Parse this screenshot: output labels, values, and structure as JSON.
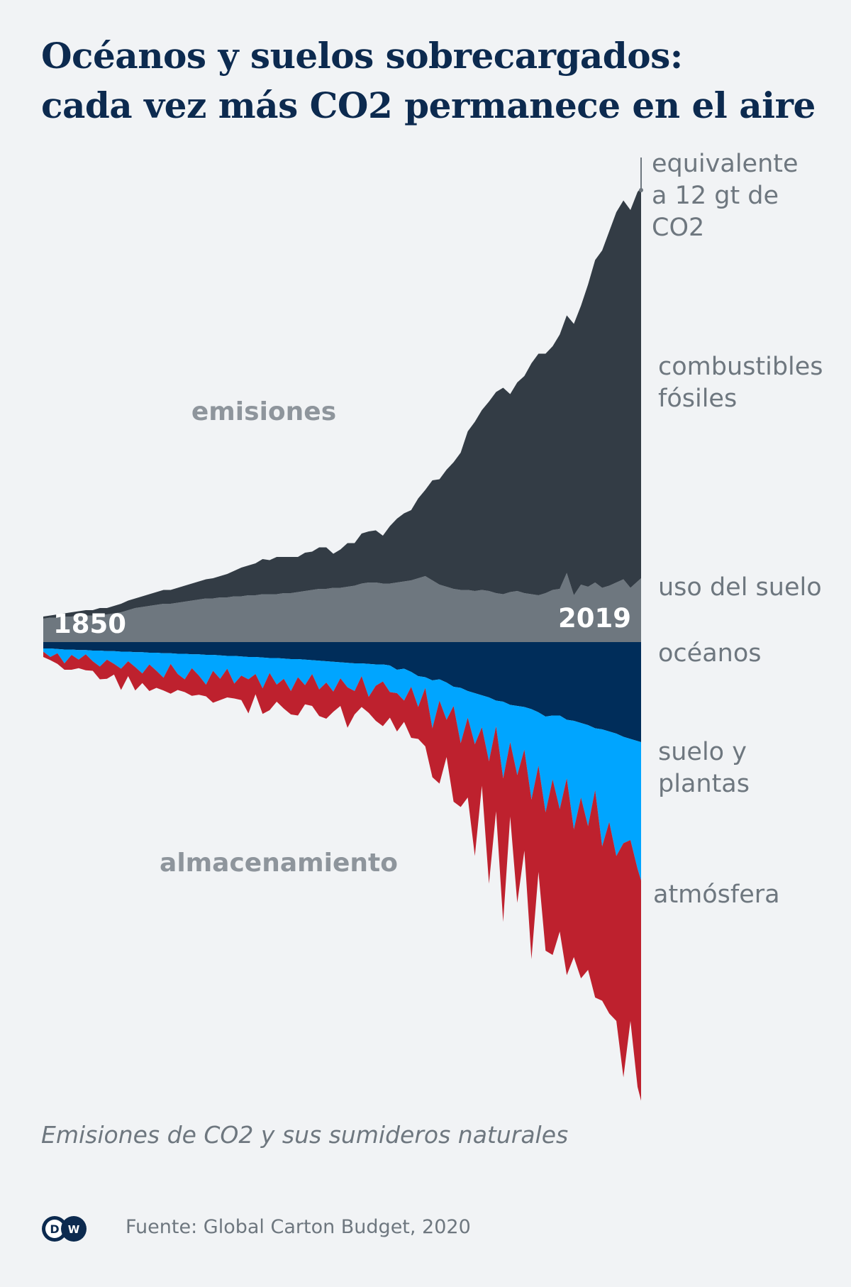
{
  "title_lines": [
    "Océanos y suelos sobrecargados:",
    "cada vez más CO2 permanece en el aire"
  ],
  "caption": "Emisiones de CO2 y sus sumideros naturales",
  "source": "Fuente: Global Carton Budget, 2020",
  "logo_text": "DW",
  "chart_data": {
    "type": "area",
    "title": "Océanos y suelos sobrecargados: cada vez más CO2 permanece en el aire",
    "subtitle": "Emisiones de CO2 y sus sumideros naturales",
    "stacking": "diverging stacked area (emissions above, sinks below a zero baseline)",
    "grid": false,
    "year_labels": {
      "start": "1850",
      "end": "2019"
    },
    "group_labels": {
      "up": "emisiones",
      "down": "almacenamiento"
    },
    "scale_note": [
      "equivalente",
      "a 12 gt de",
      "CO2"
    ],
    "x": [
      1850,
      1852,
      1854,
      1856,
      1858,
      1860,
      1862,
      1864,
      1866,
      1868,
      1870,
      1872,
      1874,
      1876,
      1878,
      1880,
      1882,
      1884,
      1886,
      1888,
      1890,
      1892,
      1894,
      1896,
      1898,
      1900,
      1902,
      1904,
      1906,
      1908,
      1910,
      1912,
      1914,
      1916,
      1918,
      1920,
      1922,
      1924,
      1926,
      1928,
      1930,
      1932,
      1934,
      1936,
      1938,
      1940,
      1942,
      1944,
      1946,
      1948,
      1950,
      1952,
      1954,
      1956,
      1958,
      1960,
      1962,
      1964,
      1966,
      1968,
      1970,
      1972,
      1974,
      1976,
      1978,
      1980,
      1982,
      1984,
      1986,
      1988,
      1990,
      1992,
      1994,
      1996,
      1998,
      2000,
      2002,
      2004,
      2006,
      2008,
      2010,
      2012,
      2014,
      2016,
      2018,
      2019
    ],
    "series": [
      {
        "name": "combustibles fósiles",
        "direction": "up",
        "color": "#333c45",
        "values": [
          0.2,
          0.2,
          0.3,
          0.3,
          0.4,
          0.4,
          0.5,
          0.5,
          0.6,
          0.6,
          0.7,
          0.8,
          0.9,
          0.9,
          1.0,
          1.1,
          1.2,
          1.3,
          1.3,
          1.4,
          1.5,
          1.6,
          1.7,
          1.8,
          1.9,
          2.0,
          2.2,
          2.4,
          2.7,
          2.8,
          3.0,
          3.3,
          3.2,
          3.5,
          3.4,
          3.4,
          3.3,
          3.6,
          3.6,
          3.9,
          3.9,
          3.2,
          3.6,
          4.1,
          4.0,
          4.7,
          4.8,
          4.9,
          4.5,
          5.4,
          6.0,
          6.4,
          6.6,
          7.5,
          8.1,
          9.4,
          9.9,
          11.0,
          11.9,
          12.9,
          14.9,
          15.9,
          16.9,
          17.8,
          18.9,
          19.4,
          18.6,
          19.6,
          20.4,
          21.7,
          22.7,
          22.5,
          22.9,
          23.9,
          24.2,
          25.5,
          26.2,
          28.4,
          30.3,
          31.7,
          33.3,
          34.8,
          35.6,
          35.5,
          36.6,
          36.7
        ]
      },
      {
        "name": "uso del suelo",
        "direction": "up",
        "color": "#6e777f",
        "values": [
          2.2,
          2.3,
          2.3,
          2.4,
          2.4,
          2.5,
          2.5,
          2.5,
          2.6,
          2.6,
          2.7,
          2.8,
          3.0,
          3.2,
          3.3,
          3.4,
          3.5,
          3.6,
          3.6,
          3.7,
          3.8,
          3.9,
          4.0,
          4.1,
          4.1,
          4.2,
          4.2,
          4.3,
          4.3,
          4.4,
          4.4,
          4.5,
          4.5,
          4.5,
          4.6,
          4.6,
          4.7,
          4.8,
          4.9,
          5.0,
          5.0,
          5.1,
          5.1,
          5.2,
          5.3,
          5.5,
          5.6,
          5.6,
          5.5,
          5.5,
          5.6,
          5.7,
          5.8,
          6.0,
          6.2,
          5.8,
          5.4,
          5.2,
          5.0,
          4.9,
          4.9,
          4.8,
          4.9,
          4.8,
          4.6,
          4.5,
          4.7,
          4.8,
          4.6,
          4.5,
          4.4,
          4.6,
          4.9,
          5.0,
          6.5,
          4.4,
          5.4,
          5.2,
          5.6,
          5.1,
          5.3,
          5.6,
          5.9,
          5.1,
          5.7,
          6.0
        ]
      },
      {
        "name": "océanos",
        "direction": "down",
        "color": "#002d5a",
        "values": [
          0.6,
          0.6,
          0.65,
          0.7,
          0.7,
          0.75,
          0.75,
          0.8,
          0.8,
          0.85,
          0.85,
          0.9,
          0.9,
          0.95,
          0.95,
          1.0,
          1.0,
          1.05,
          1.05,
          1.1,
          1.1,
          1.15,
          1.15,
          1.2,
          1.2,
          1.25,
          1.3,
          1.3,
          1.35,
          1.4,
          1.4,
          1.45,
          1.5,
          1.5,
          1.55,
          1.6,
          1.6,
          1.65,
          1.7,
          1.75,
          1.8,
          1.85,
          1.9,
          1.95,
          2.0,
          2.0,
          2.05,
          2.1,
          2.1,
          2.2,
          2.6,
          2.5,
          2.8,
          3.2,
          3.3,
          3.6,
          3.5,
          3.8,
          4.2,
          4.3,
          4.6,
          4.8,
          5.0,
          5.2,
          5.5,
          5.6,
          5.9,
          6.0,
          6.1,
          6.3,
          6.6,
          7.0,
          6.9,
          6.9,
          7.3,
          7.4,
          7.6,
          7.8,
          8.1,
          8.2,
          8.4,
          8.6,
          8.9,
          9.1,
          9.3,
          9.4
        ]
      },
      {
        "name": "suelo y plantas",
        "direction": "down",
        "color": "#00a5ff",
        "values": [
          0.3,
          0.8,
          0.4,
          1.3,
          0.5,
          0.9,
          0.4,
          1.0,
          1.5,
          0.8,
          1.2,
          1.6,
          0.9,
          1.4,
          2.0,
          1.1,
          1.7,
          2.3,
          1.0,
          1.9,
          2.4,
          1.3,
          2.0,
          2.8,
          1.5,
          2.2,
          1.2,
          2.6,
          1.8,
          2.1,
          1.6,
          2.9,
          1.4,
          2.5,
          1.9,
          3.0,
          1.7,
          2.4,
          1.3,
          2.7,
          2.0,
          2.8,
          1.5,
          2.3,
          2.6,
          1.2,
          3.1,
          2.0,
          1.6,
          2.5,
          2.2,
          3.0,
          1.4,
          2.9,
          1.0,
          4.5,
          2.0,
          3.5,
          1.8,
          5.2,
          2.5,
          4.8,
          3.0,
          6.0,
          2.4,
          7.2,
          3.5,
          6.5,
          4.0,
          8.5,
          5.0,
          9.0,
          6.0,
          8.8,
          5.5,
          10.2,
          7.0,
          9.5,
          5.8,
          11.0,
          8.5,
          11.5,
          10.0,
          9.5,
          12.0,
          13.0
        ]
      },
      {
        "name": "atmósfera",
        "direction": "down",
        "color": "#be212e",
        "values": [
          0.5,
          0.3,
          1.0,
          0.6,
          1.4,
          0.8,
          1.5,
          0.9,
          1.2,
          1.8,
          1.0,
          2.0,
          1.4,
          2.2,
          0.9,
          2.5,
          1.6,
          1.2,
          2.8,
          1.5,
          1.2,
          2.6,
          1.8,
          1.1,
          3.0,
          2.0,
          2.7,
          1.4,
          2.3,
          3.2,
          1.9,
          2.4,
          3.5,
          1.6,
          2.8,
          2.2,
          3.6,
          1.8,
          3.0,
          2.5,
          3.4,
          1.9,
          2.6,
          3.8,
          2.2,
          2.9,
          1.5,
          3.3,
          4.2,
          2.4,
          3.6,
          2.0,
          4.8,
          3.0,
          5.5,
          4.6,
          7.8,
          3.5,
          9.0,
          6.0,
          7.5,
          10.5,
          5.5,
          11.5,
          8.0,
          13.5,
          7.0,
          12.0,
          9.5,
          15.0,
          10.0,
          13.0,
          16.5,
          11.5,
          18.5,
          12.0,
          17.0,
          13.5,
          19.5,
          14.5,
          18.0,
          15.5,
          22.0,
          17.0,
          20.5,
          20.7
        ]
      }
    ]
  }
}
